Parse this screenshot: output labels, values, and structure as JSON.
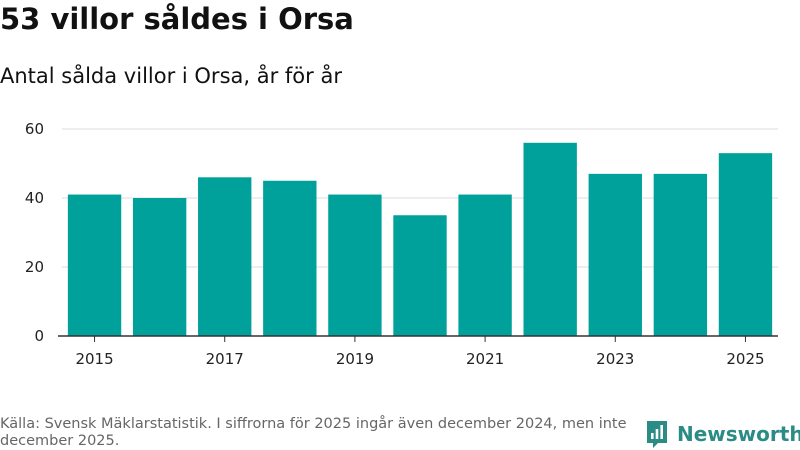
{
  "header": {
    "title": "53 villor såldes i Orsa",
    "subtitle": "Antal sålda villor i Orsa, år för år"
  },
  "chart_data": {
    "type": "bar",
    "title": "53 villor såldes i Orsa",
    "subtitle": "Antal sålda villor i Orsa, år för år",
    "categories": [
      "2015",
      "2016",
      "2017",
      "2018",
      "2019",
      "2020",
      "2021",
      "2022",
      "2023",
      "2024",
      "2025"
    ],
    "values": [
      41,
      40,
      46,
      45,
      41,
      35,
      41,
      56,
      47,
      47,
      53
    ],
    "x_tick_labels": [
      "2015",
      "2017",
      "2019",
      "2021",
      "2023",
      "2025"
    ],
    "y_ticks": [
      0,
      20,
      40,
      60
    ],
    "ylim": [
      0,
      60
    ],
    "xlabel": "",
    "ylabel": "",
    "grid": true,
    "bar_color": "#00a19a"
  },
  "footer": {
    "source": "Källa: Svensk Mäklarstatistik. I siffrorna för 2025 ingår även december 2024, men inte december 2025."
  },
  "brand": {
    "name": "Newsworthy",
    "icon": "newsworthy-logo-icon",
    "color": "#2a8c85"
  }
}
